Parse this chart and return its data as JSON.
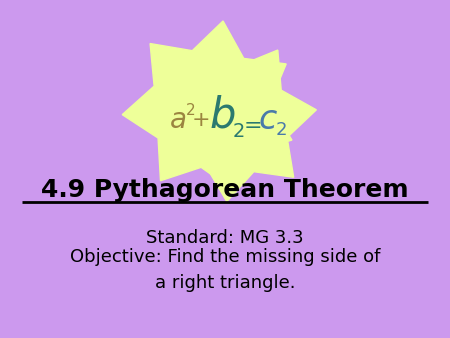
{
  "background_color": "#CC99EE",
  "star_color": "#EEFF99",
  "title": "4.9 Pythagorean Theorem",
  "title_fontsize": 18,
  "title_color": "#000000",
  "standard_text": "Standard: MG 3.3",
  "standard_fontsize": 13,
  "standard_color": "#000000",
  "objective_text": "Objective: Find the missing side of\na right triangle.",
  "objective_fontsize": 13,
  "objective_color": "#000000",
  "formula_a_color": "#9B8540",
  "formula_b_color": "#2B7A6F",
  "formula_c_color": "#4A7AAA",
  "formula_plus_eq_color": "#9B8540"
}
